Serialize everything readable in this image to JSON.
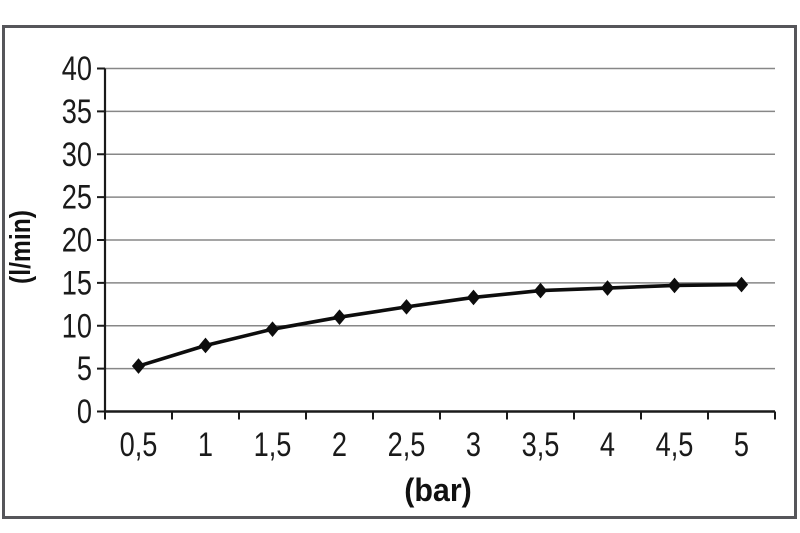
{
  "chart_data": {
    "type": "line",
    "title": "",
    "xlabel": "(bar)",
    "ylabel": "(l/min)",
    "categories": [
      "0,5",
      "1",
      "1,5",
      "2",
      "2,5",
      "3",
      "3,5",
      "4",
      "4,5",
      "5"
    ],
    "values": [
      5.3,
      7.7,
      9.6,
      11.0,
      12.2,
      13.3,
      14.1,
      14.4,
      14.7,
      14.8
    ],
    "ylim": [
      0,
      40
    ],
    "y_ticks": [
      0,
      5,
      10,
      15,
      20,
      25,
      30,
      35,
      40
    ],
    "y_tick_labels": [
      "0",
      "5",
      "10",
      "15",
      "20",
      "25",
      "30",
      "35",
      "40"
    ],
    "grid": "horizontal",
    "legend": "none",
    "marker": "diamond",
    "line_color": "#0d0d0d",
    "grid_color": "#878787",
    "axis_color": "#1a1a1a",
    "text_color": "#1a1a1a",
    "frame_color": "#56565a",
    "background_color": "#ffffff"
  }
}
